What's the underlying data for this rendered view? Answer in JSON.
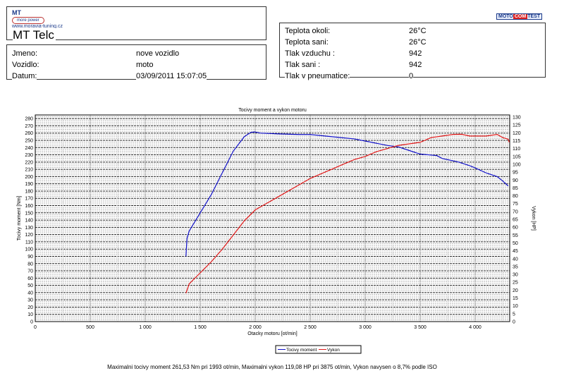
{
  "header": {
    "logo_text": "MT more power www.moravia-tuning.cz",
    "company": "MT Telc",
    "brand_logo": "MOTO COM TEST"
  },
  "vehicle": {
    "rows": [
      {
        "label": "Jmeno:",
        "value": "nove vozidlo"
      },
      {
        "label": "Vozidlo:",
        "value": "moto"
      },
      {
        "label": "Datum:",
        "value": "03/09/2011 15:07:05"
      }
    ]
  },
  "conditions": {
    "rows": [
      {
        "label": "Teplota okoli:",
        "value": "26°C"
      },
      {
        "label": "Teplota sani:",
        "value": "26°C"
      },
      {
        "label": "Tlak vzduchu :",
        "value": "942"
      },
      {
        "label": "Tlak sani :",
        "value": "942"
      },
      {
        "label": "Tlak v pneumatice:",
        "value": "0"
      }
    ]
  },
  "chart_data": {
    "type": "line",
    "title": "Tocivy moment a vykon motoru",
    "xlabel": "Otacky motoru [ot/min]",
    "ylabel": "Tocivy moment [Nm]",
    "y2label": "Vykon [HP]",
    "xlim": [
      0,
      4314
    ],
    "ylim": [
      0,
      285
    ],
    "y2lim": [
      0,
      130
    ],
    "xticks": [
      0,
      500,
      1000,
      1500,
      2000,
      2500,
      3000,
      3500,
      4000
    ],
    "xtick_labels": [
      "0",
      "500",
      "1 000",
      "1 500",
      "2 000",
      "2 500",
      "3 000",
      "3 500",
      "4 000"
    ],
    "yticks": [
      0,
      10,
      20,
      30,
      40,
      50,
      60,
      70,
      80,
      90,
      100,
      110,
      120,
      130,
      140,
      150,
      160,
      170,
      180,
      190,
      200,
      210,
      220,
      230,
      240,
      250,
      260,
      270,
      280
    ],
    "y2ticks": [
      0,
      5,
      10,
      15,
      20,
      25,
      30,
      35,
      40,
      45,
      50,
      55,
      60,
      65,
      70,
      75,
      80,
      85,
      90,
      95,
      100,
      105,
      110,
      115,
      120,
      125,
      130
    ],
    "grid": true,
    "legend_position": "bottom-center",
    "series": [
      {
        "name": "Tocivy moment",
        "axis": "left",
        "color": "#1010c8",
        "x": [
          1370,
          1380,
          1400,
          1500,
          1600,
          1700,
          1800,
          1900,
          1960,
          1993,
          2050,
          2200,
          2400,
          2500,
          2700,
          2900,
          3000,
          3200,
          3300,
          3400,
          3500,
          3650,
          3700,
          3850,
          3950,
          4000,
          4100,
          4200,
          4250,
          4300
        ],
        "y": [
          90,
          115,
          125,
          150,
          175,
          205,
          235,
          255,
          261,
          261.5,
          260,
          259,
          258,
          258,
          255,
          252,
          249,
          243,
          241,
          236,
          231,
          229,
          225,
          220,
          215,
          212,
          205,
          200,
          194,
          187
        ]
      },
      {
        "name": "Vykon",
        "axis": "right",
        "color": "#e01818",
        "x": [
          1370,
          1400,
          1500,
          1600,
          1700,
          1800,
          1900,
          2000,
          2200,
          2400,
          2500,
          2700,
          2800,
          2900,
          3000,
          3100,
          3200,
          3300,
          3400,
          3500,
          3600,
          3700,
          3800,
          3875,
          3950,
          4000,
          4100,
          4200,
          4250,
          4300,
          4310
        ],
        "y": [
          18,
          24,
          31,
          38,
          46,
          55,
          64,
          71,
          79,
          87,
          91,
          97,
          100,
          103,
          105,
          108,
          110,
          112,
          113,
          114,
          117,
          118,
          119,
          119.1,
          118,
          118,
          118,
          119,
          117,
          116,
          114
        ]
      }
    ],
    "footer": "Maximalni tocivy moment 261,53 Nm pri 1993 ot/min,  Maximalni vykon 119,08 HP pri 3875 ot/min,  Vykon navysen o 8,7% podle ISO"
  }
}
